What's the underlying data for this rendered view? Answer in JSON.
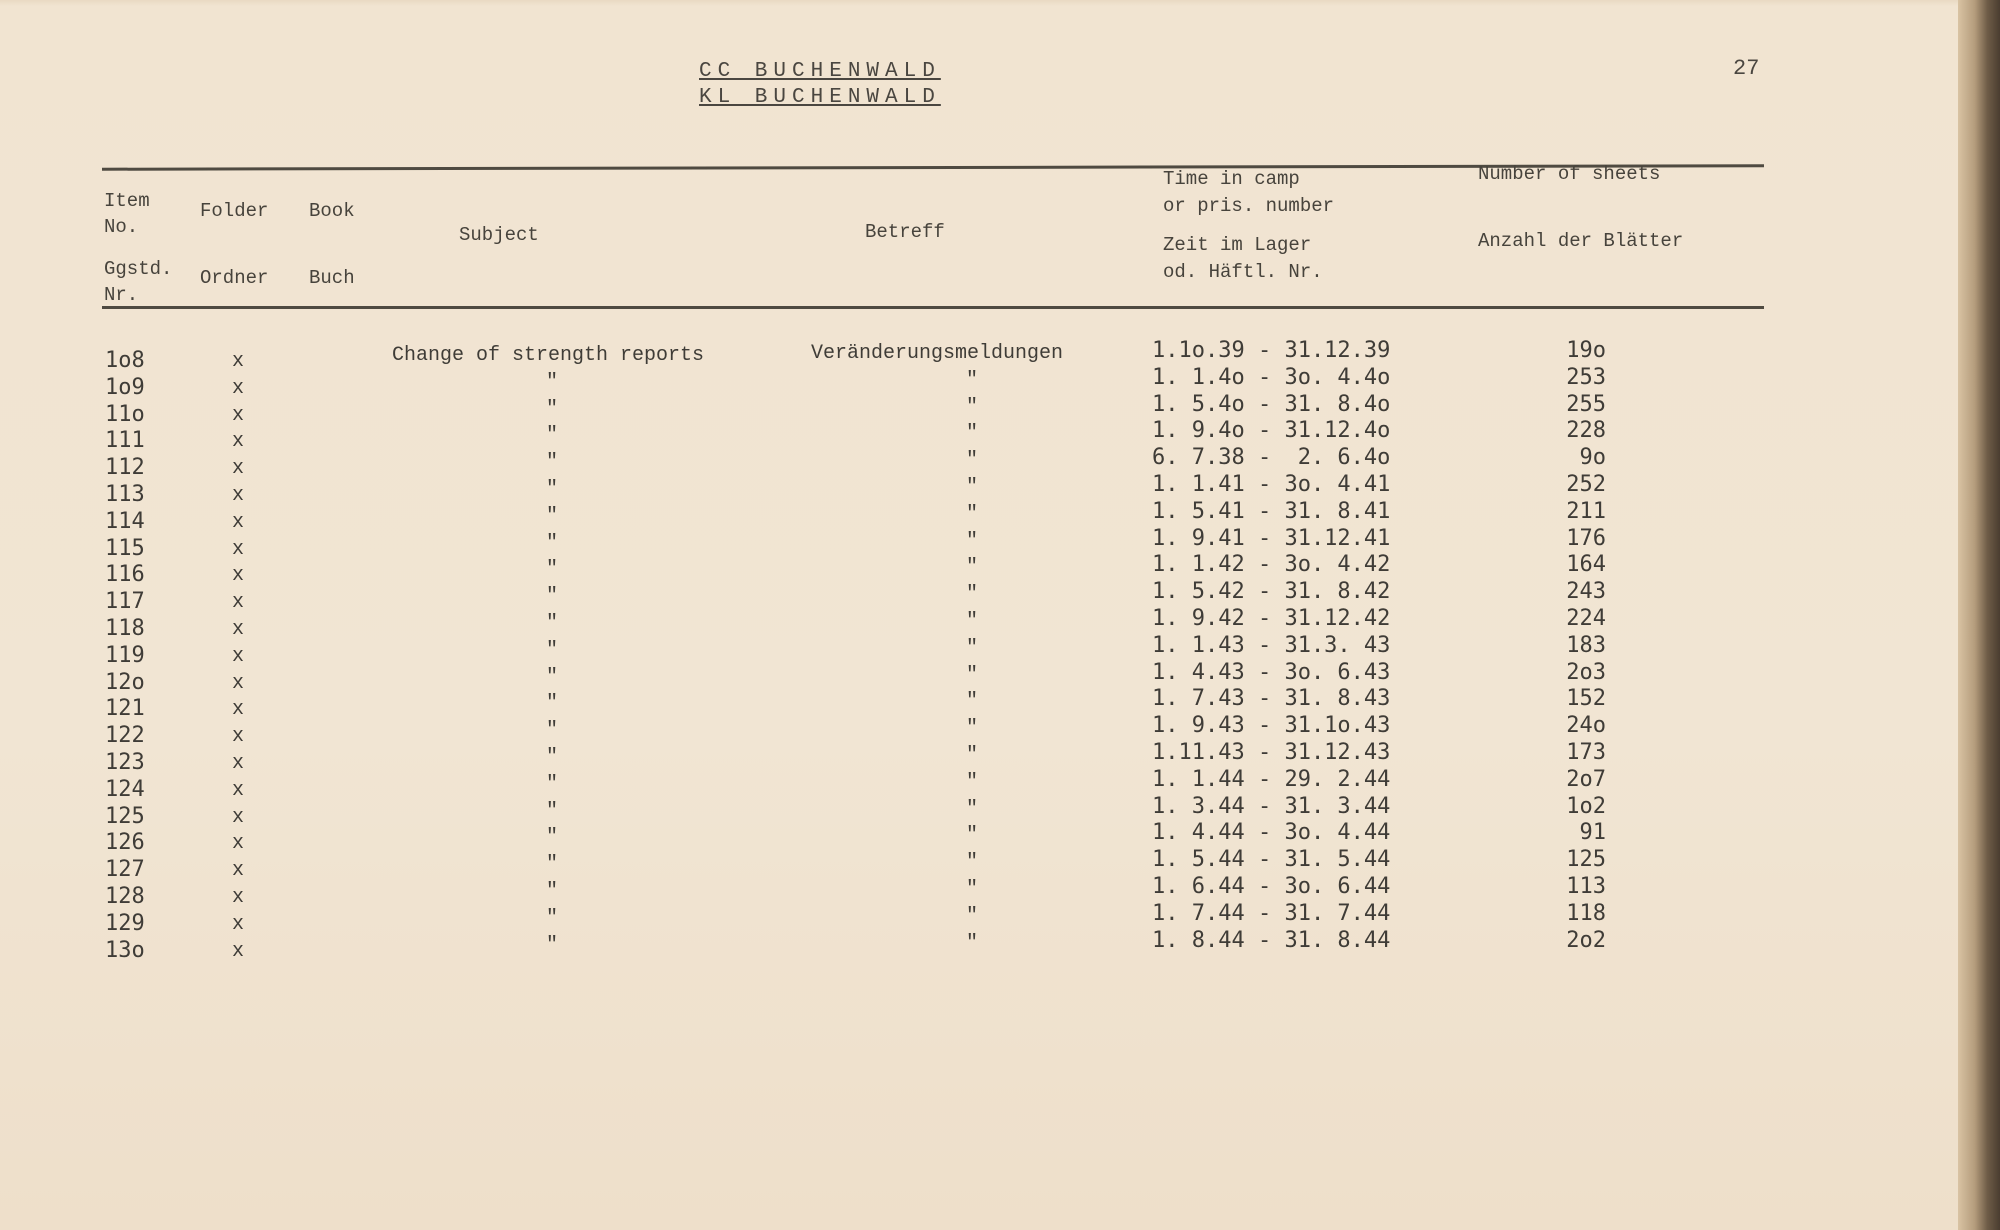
{
  "header": {
    "title_line1": "CC BUCHENWALD",
    "title_line2": "KL BUCHENWALD",
    "page_number": "27"
  },
  "columns": {
    "item_en": "Item\nNo.",
    "item_de": "Ggstd.\nNr.",
    "folder_en": "Folder",
    "folder_de": "Ordner",
    "book_en": "Book",
    "book_de": "Buch",
    "subject": "Subject",
    "betreff": "Betreff",
    "time_en": "Time in camp\nor pris. number",
    "time_de": "Zeit im Lager\nod. Häftl. Nr.",
    "sheets_en": "Number of sheets",
    "sheets_de": "Anzahl der Blätter"
  },
  "rows": [
    {
      "item": "1o8",
      "folder": "x",
      "subject": "Change of strength reports",
      "betreff": "Veränderungsmeldungen",
      "time": "1.1o.39 - 31.12.39",
      "sheets": "19o"
    },
    {
      "item": "1o9",
      "folder": "x",
      "subject": "\"",
      "betreff": "\"",
      "time": "1. 1.4o - 3o. 4.4o",
      "sheets": "253"
    },
    {
      "item": "11o",
      "folder": "x",
      "subject": "\"",
      "betreff": "\"",
      "time": "1. 5.4o - 31. 8.4o",
      "sheets": "255"
    },
    {
      "item": "111",
      "folder": "x",
      "subject": "\"",
      "betreff": "\"",
      "time": "1. 9.4o - 31.12.4o",
      "sheets": "228"
    },
    {
      "item": "112",
      "folder": "x",
      "subject": "\"",
      "betreff": "\"",
      "time": "6. 7.38 -  2. 6.4o",
      "sheets": "9o"
    },
    {
      "item": "113",
      "folder": "x",
      "subject": "\"",
      "betreff": "\"",
      "time": "1. 1.41 - 3o. 4.41",
      "sheets": "252"
    },
    {
      "item": "114",
      "folder": "x",
      "subject": "\"",
      "betreff": "\"",
      "time": "1. 5.41 - 31. 8.41",
      "sheets": "211"
    },
    {
      "item": "115",
      "folder": "x",
      "subject": "\"",
      "betreff": "\"",
      "time": "1. 9.41 - 31.12.41",
      "sheets": "176"
    },
    {
      "item": "116",
      "folder": "x",
      "subject": "\"",
      "betreff": "\"",
      "time": "1. 1.42 - 3o. 4.42",
      "sheets": "164"
    },
    {
      "item": "117",
      "folder": "x",
      "subject": "\"",
      "betreff": "\"",
      "time": "1. 5.42 - 31. 8.42",
      "sheets": "243"
    },
    {
      "item": "118",
      "folder": "x",
      "subject": "\"",
      "betreff": "\"",
      "time": "1. 9.42 - 31.12.42",
      "sheets": "224"
    },
    {
      "item": "119",
      "folder": "x",
      "subject": "\"",
      "betreff": "\"",
      "time": "1. 1.43 - 31.3. 43",
      "sheets": "183"
    },
    {
      "item": "12o",
      "folder": "x",
      "subject": "\"",
      "betreff": "\"",
      "time": "1. 4.43 - 3o. 6.43",
      "sheets": "2o3"
    },
    {
      "item": "121",
      "folder": "x",
      "subject": "\"",
      "betreff": "\"",
      "time": "1. 7.43 - 31. 8.43",
      "sheets": "152"
    },
    {
      "item": "122",
      "folder": "x",
      "subject": "\"",
      "betreff": "\"",
      "time": "1. 9.43 - 31.1o.43",
      "sheets": "24o"
    },
    {
      "item": "123",
      "folder": "x",
      "subject": "\"",
      "betreff": "\"",
      "time": "1.11.43 - 31.12.43",
      "sheets": "173"
    },
    {
      "item": "124",
      "folder": "x",
      "subject": "\"",
      "betreff": "\"",
      "time": "1. 1.44 - 29. 2.44",
      "sheets": "2o7"
    },
    {
      "item": "125",
      "folder": "x",
      "subject": "\"",
      "betreff": "\"",
      "time": "1. 3.44 - 31. 3.44",
      "sheets": "1o2"
    },
    {
      "item": "126",
      "folder": "x",
      "subject": "\"",
      "betreff": "\"",
      "time": "1. 4.44 - 3o. 4.44",
      "sheets": "91"
    },
    {
      "item": "127",
      "folder": "x",
      "subject": "\"",
      "betreff": "\"",
      "time": "1. 5.44 - 31. 5.44",
      "sheets": "125"
    },
    {
      "item": "128",
      "folder": "x",
      "subject": "\"",
      "betreff": "\"",
      "time": "1. 6.44 - 3o. 6.44",
      "sheets": "113"
    },
    {
      "item": "129",
      "folder": "x",
      "subject": "\"",
      "betreff": "\"",
      "time": "1. 7.44 - 31. 7.44",
      "sheets": "118"
    },
    {
      "item": "13o",
      "folder": "x",
      "subject": "\"",
      "betreff": "\"",
      "time": "1. 8.44 - 31. 8.44",
      "sheets": "2o2"
    }
  ]
}
